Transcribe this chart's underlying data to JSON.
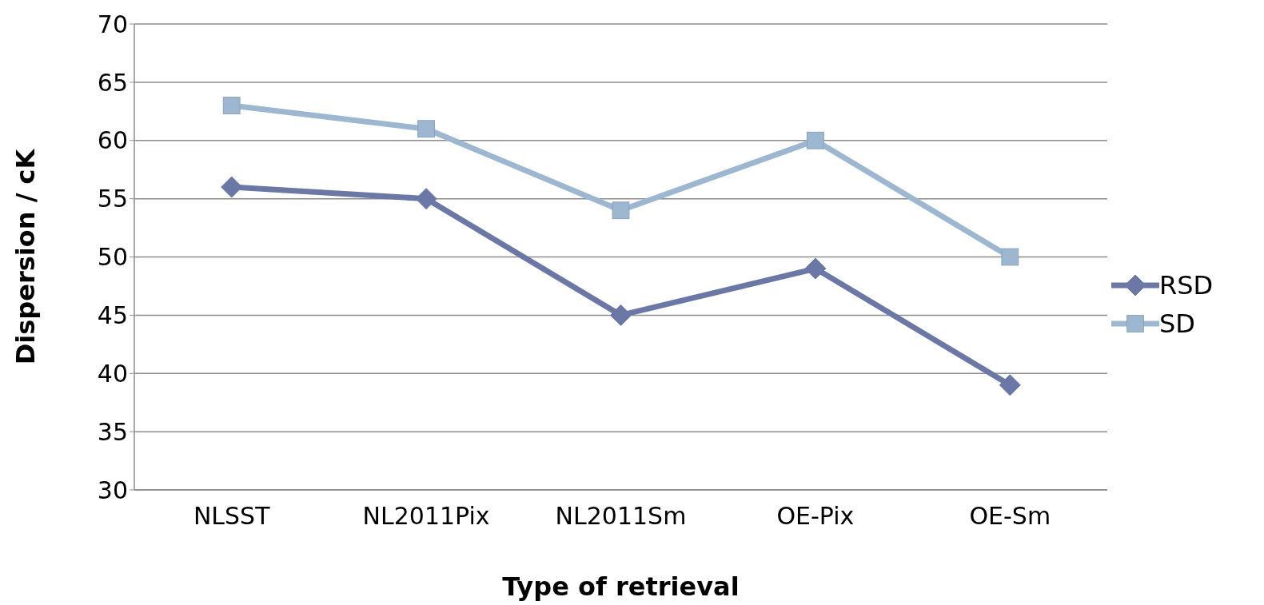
{
  "chart_data": {
    "type": "line",
    "xlabel": "Type of retrieval",
    "ylabel": "Dispersion / cK",
    "categories": [
      "NLSST",
      "NL2011Pix",
      "NL2011Sm",
      "OE-Pix",
      "OE-Sm"
    ],
    "series": [
      {
        "name": "RSD",
        "color": "#6b78a5",
        "marker": "diamond",
        "values": [
          56,
          55,
          45,
          49,
          39
        ]
      },
      {
        "name": "SD",
        "color": "#9db7d0",
        "marker": "square",
        "values": [
          63,
          61,
          54,
          60,
          50
        ]
      }
    ],
    "ylim": [
      30,
      70
    ],
    "yticks": [
      30,
      35,
      40,
      45,
      50,
      55,
      60,
      65,
      70
    ],
    "grid": "y",
    "legend": "right",
    "line_style": "solid"
  }
}
